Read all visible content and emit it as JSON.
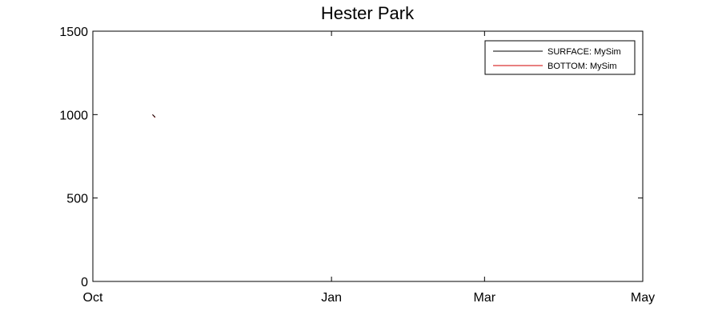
{
  "chart_data": {
    "type": "line",
    "title": "Hester Park",
    "xlabel": "",
    "ylabel": "",
    "x_axis": "date",
    "xlim": [
      "Oct",
      "May"
    ],
    "x_ticks": [
      "Oct",
      "Jan",
      "Mar",
      "May"
    ],
    "ylim": [
      0,
      1500
    ],
    "y_ticks": [
      0,
      500,
      1000,
      1500
    ],
    "grid": false,
    "legend_position": "top-right",
    "series": [
      {
        "name": "SURFACE: MySim",
        "color": "#000000",
        "points": [
          {
            "x": "Oct 24",
            "y": 1000
          },
          {
            "x": "Oct 25",
            "y": 985
          }
        ]
      },
      {
        "name": "BOTTOM: MySim",
        "color": "#d00000",
        "points": [
          {
            "x": "Oct 24",
            "y": 1000
          },
          {
            "x": "Oct 25",
            "y": 982
          }
        ]
      }
    ]
  }
}
